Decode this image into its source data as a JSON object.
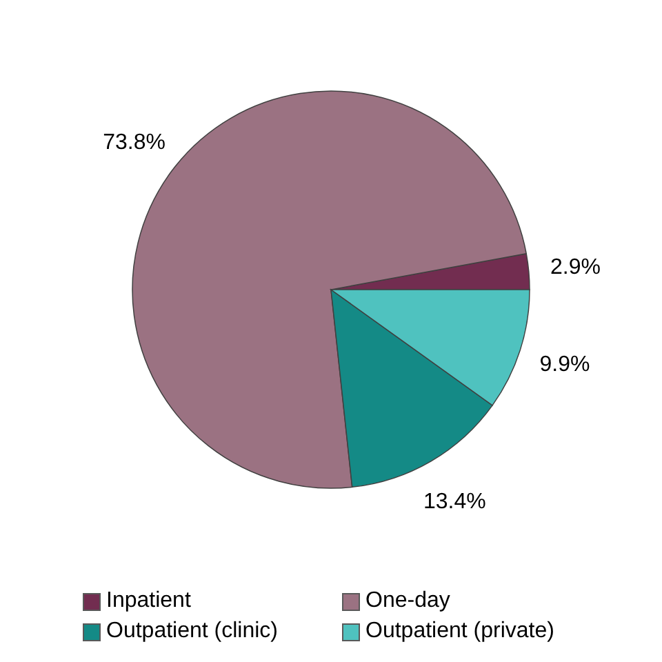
{
  "chart_data": {
    "type": "pie",
    "categories": [
      "Inpatient",
      "One-day",
      "Outpatient (clinic)",
      "Outpatient (private)"
    ],
    "values": [
      2.9,
      73.8,
      13.4,
      9.9
    ],
    "colors": [
      "#722d50",
      "#9b7282",
      "#148a86",
      "#4fc2bf"
    ],
    "value_labels": [
      "2.9%",
      "73.8%",
      "13.4%",
      "9.9%"
    ],
    "legend": "bottom"
  }
}
